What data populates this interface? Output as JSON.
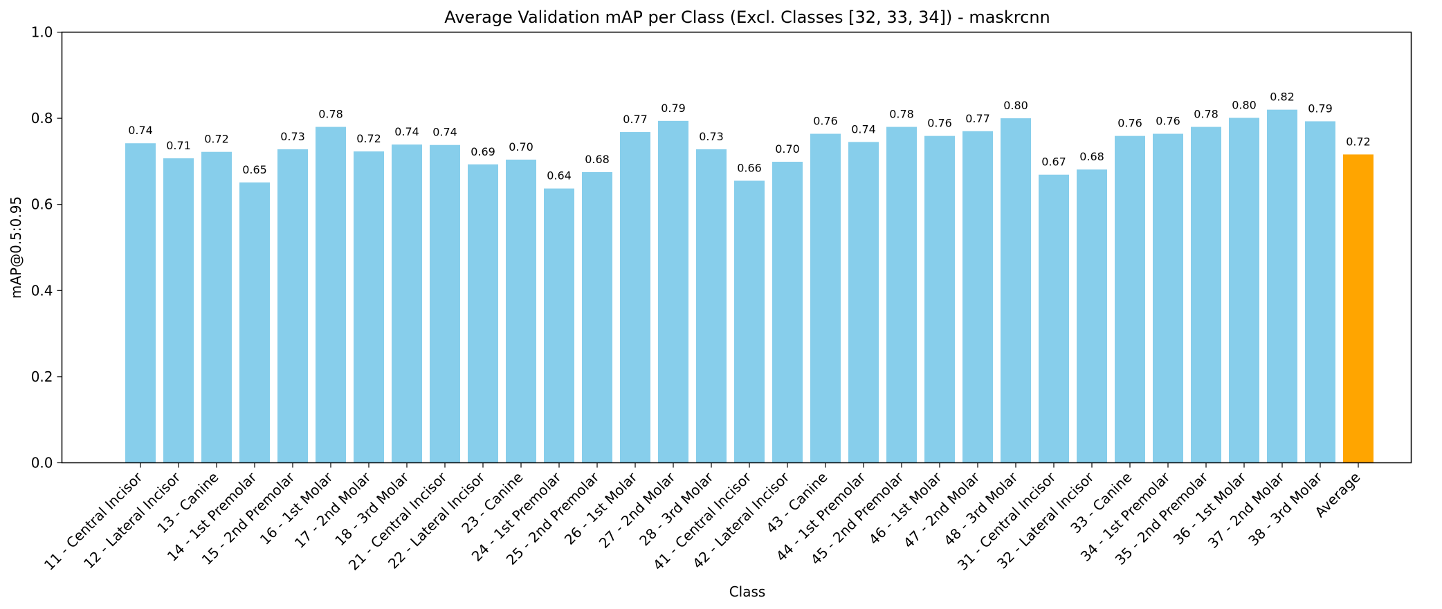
{
  "chart_data": {
    "type": "bar",
    "title": "Average Validation mAP per Class (Excl. Classes [32, 33, 34]) - maskrcnn",
    "xlabel": "Class",
    "ylabel": "mAP@0.5:0.95",
    "ylim": [
      0,
      1.0
    ],
    "yticks": [
      "0.0",
      "0.2",
      "0.4",
      "0.6",
      "0.8",
      "1.0"
    ],
    "grid": false,
    "colors": {
      "bar": "#87CEEB",
      "average": "#FFA500"
    },
    "categories": [
      "11 - Central Incisor",
      "12 - Lateral Incisor",
      "13 - Canine",
      "14 - 1st Premolar",
      "15 - 2nd Premolar",
      "16 - 1st Molar",
      "17 - 2nd Molar",
      "18 - 3rd Molar",
      "21 - Central Incisor",
      "22 - Lateral Incisor",
      "23 - Canine",
      "24 - 1st Premolar",
      "25 - 2nd Premolar",
      "26 - 1st Molar",
      "27 - 2nd Molar",
      "28 - 3rd Molar",
      "41 - Central Incisor",
      "42 - Lateral Incisor",
      "43 - Canine",
      "44 - 1st Premolar",
      "45 - 2nd Premolar",
      "46 - 1st Molar",
      "47 - 2nd Molar",
      "48 - 3rd Molar",
      "31 - Central Incisor",
      "32 - Lateral Incisor",
      "33 - Canine",
      "34 - 1st Premolar",
      "35 - 2nd Premolar",
      "36 - 1st Molar",
      "37 - 2nd Molar",
      "38 - 3rd Molar",
      "Average"
    ],
    "values": [
      0.742,
      0.707,
      0.722,
      0.651,
      0.728,
      0.78,
      0.723,
      0.739,
      0.738,
      0.693,
      0.704,
      0.637,
      0.675,
      0.768,
      0.794,
      0.728,
      0.655,
      0.699,
      0.764,
      0.745,
      0.78,
      0.759,
      0.77,
      0.8,
      0.669,
      0.681,
      0.759,
      0.764,
      0.78,
      0.801,
      0.82,
      0.793,
      0.716
    ],
    "value_labels": [
      "0.74",
      "0.71",
      "0.72",
      "0.65",
      "0.73",
      "0.78",
      "0.72",
      "0.74",
      "0.74",
      "0.69",
      "0.70",
      "0.64",
      "0.68",
      "0.77",
      "0.79",
      "0.73",
      "0.66",
      "0.70",
      "0.76",
      "0.74",
      "0.78",
      "0.76",
      "0.77",
      "0.80",
      "0.67",
      "0.68",
      "0.76",
      "0.76",
      "0.78",
      "0.80",
      "0.82",
      "0.79",
      "0.72"
    ]
  }
}
